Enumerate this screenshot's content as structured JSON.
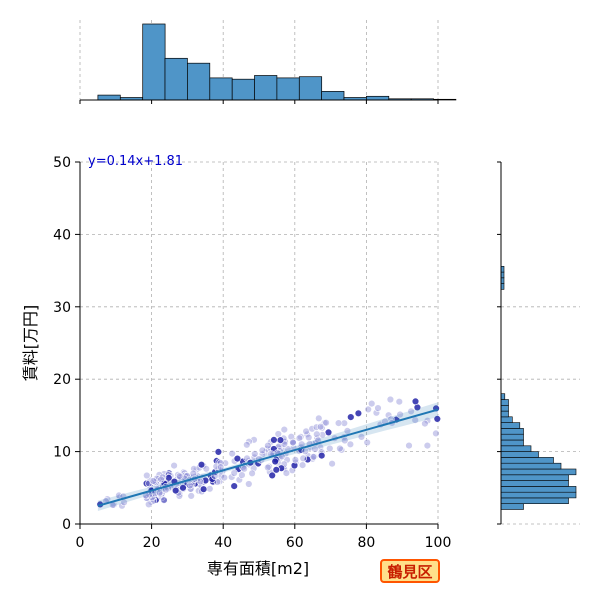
{
  "chart_data": {
    "type": "scatter",
    "xlabel": "専有面積[m2]",
    "ylabel": "賃料[万円]",
    "xlim": [
      0,
      100
    ],
    "ylim": [
      0,
      50
    ],
    "x_ticks": [
      "0",
      "20",
      "40",
      "60",
      "80",
      "100"
    ],
    "y_ticks": [
      "0",
      "10",
      "20",
      "30",
      "40",
      "50"
    ],
    "grid": true,
    "regression": {
      "label": "y=0.14x+1.81",
      "slope": 0.14,
      "intercept": 1.81,
      "x_range": [
        5,
        100
      ]
    },
    "badge": "鶴見区",
    "colors": {
      "points": "#3333bb",
      "regression": "#1f77b4",
      "histogram": "#4f95c8"
    },
    "x_histogram": {
      "bin_width": 6.25,
      "bins_start": 5,
      "counts": [
        2,
        1,
        31,
        17,
        15,
        9,
        8.5,
        10,
        9,
        9.5,
        3.5,
        1,
        1.5,
        0.5,
        0.5,
        0.3
      ]
    },
    "y_histogram": {
      "bin_width": 0.8,
      "bins_start": 2.0,
      "counts": [
        3,
        9,
        10,
        10,
        9,
        9,
        10,
        8,
        7,
        5,
        4,
        3,
        3,
        3,
        2.5,
        1.5,
        1,
        1,
        1,
        0.5,
        0,
        0,
        0,
        0,
        0,
        0,
        0,
        0,
        0,
        0,
        0,
        0,
        0,
        0,
        0,
        0,
        0,
        0,
        0.4,
        0.4,
        0.4,
        0.4
      ]
    }
  }
}
